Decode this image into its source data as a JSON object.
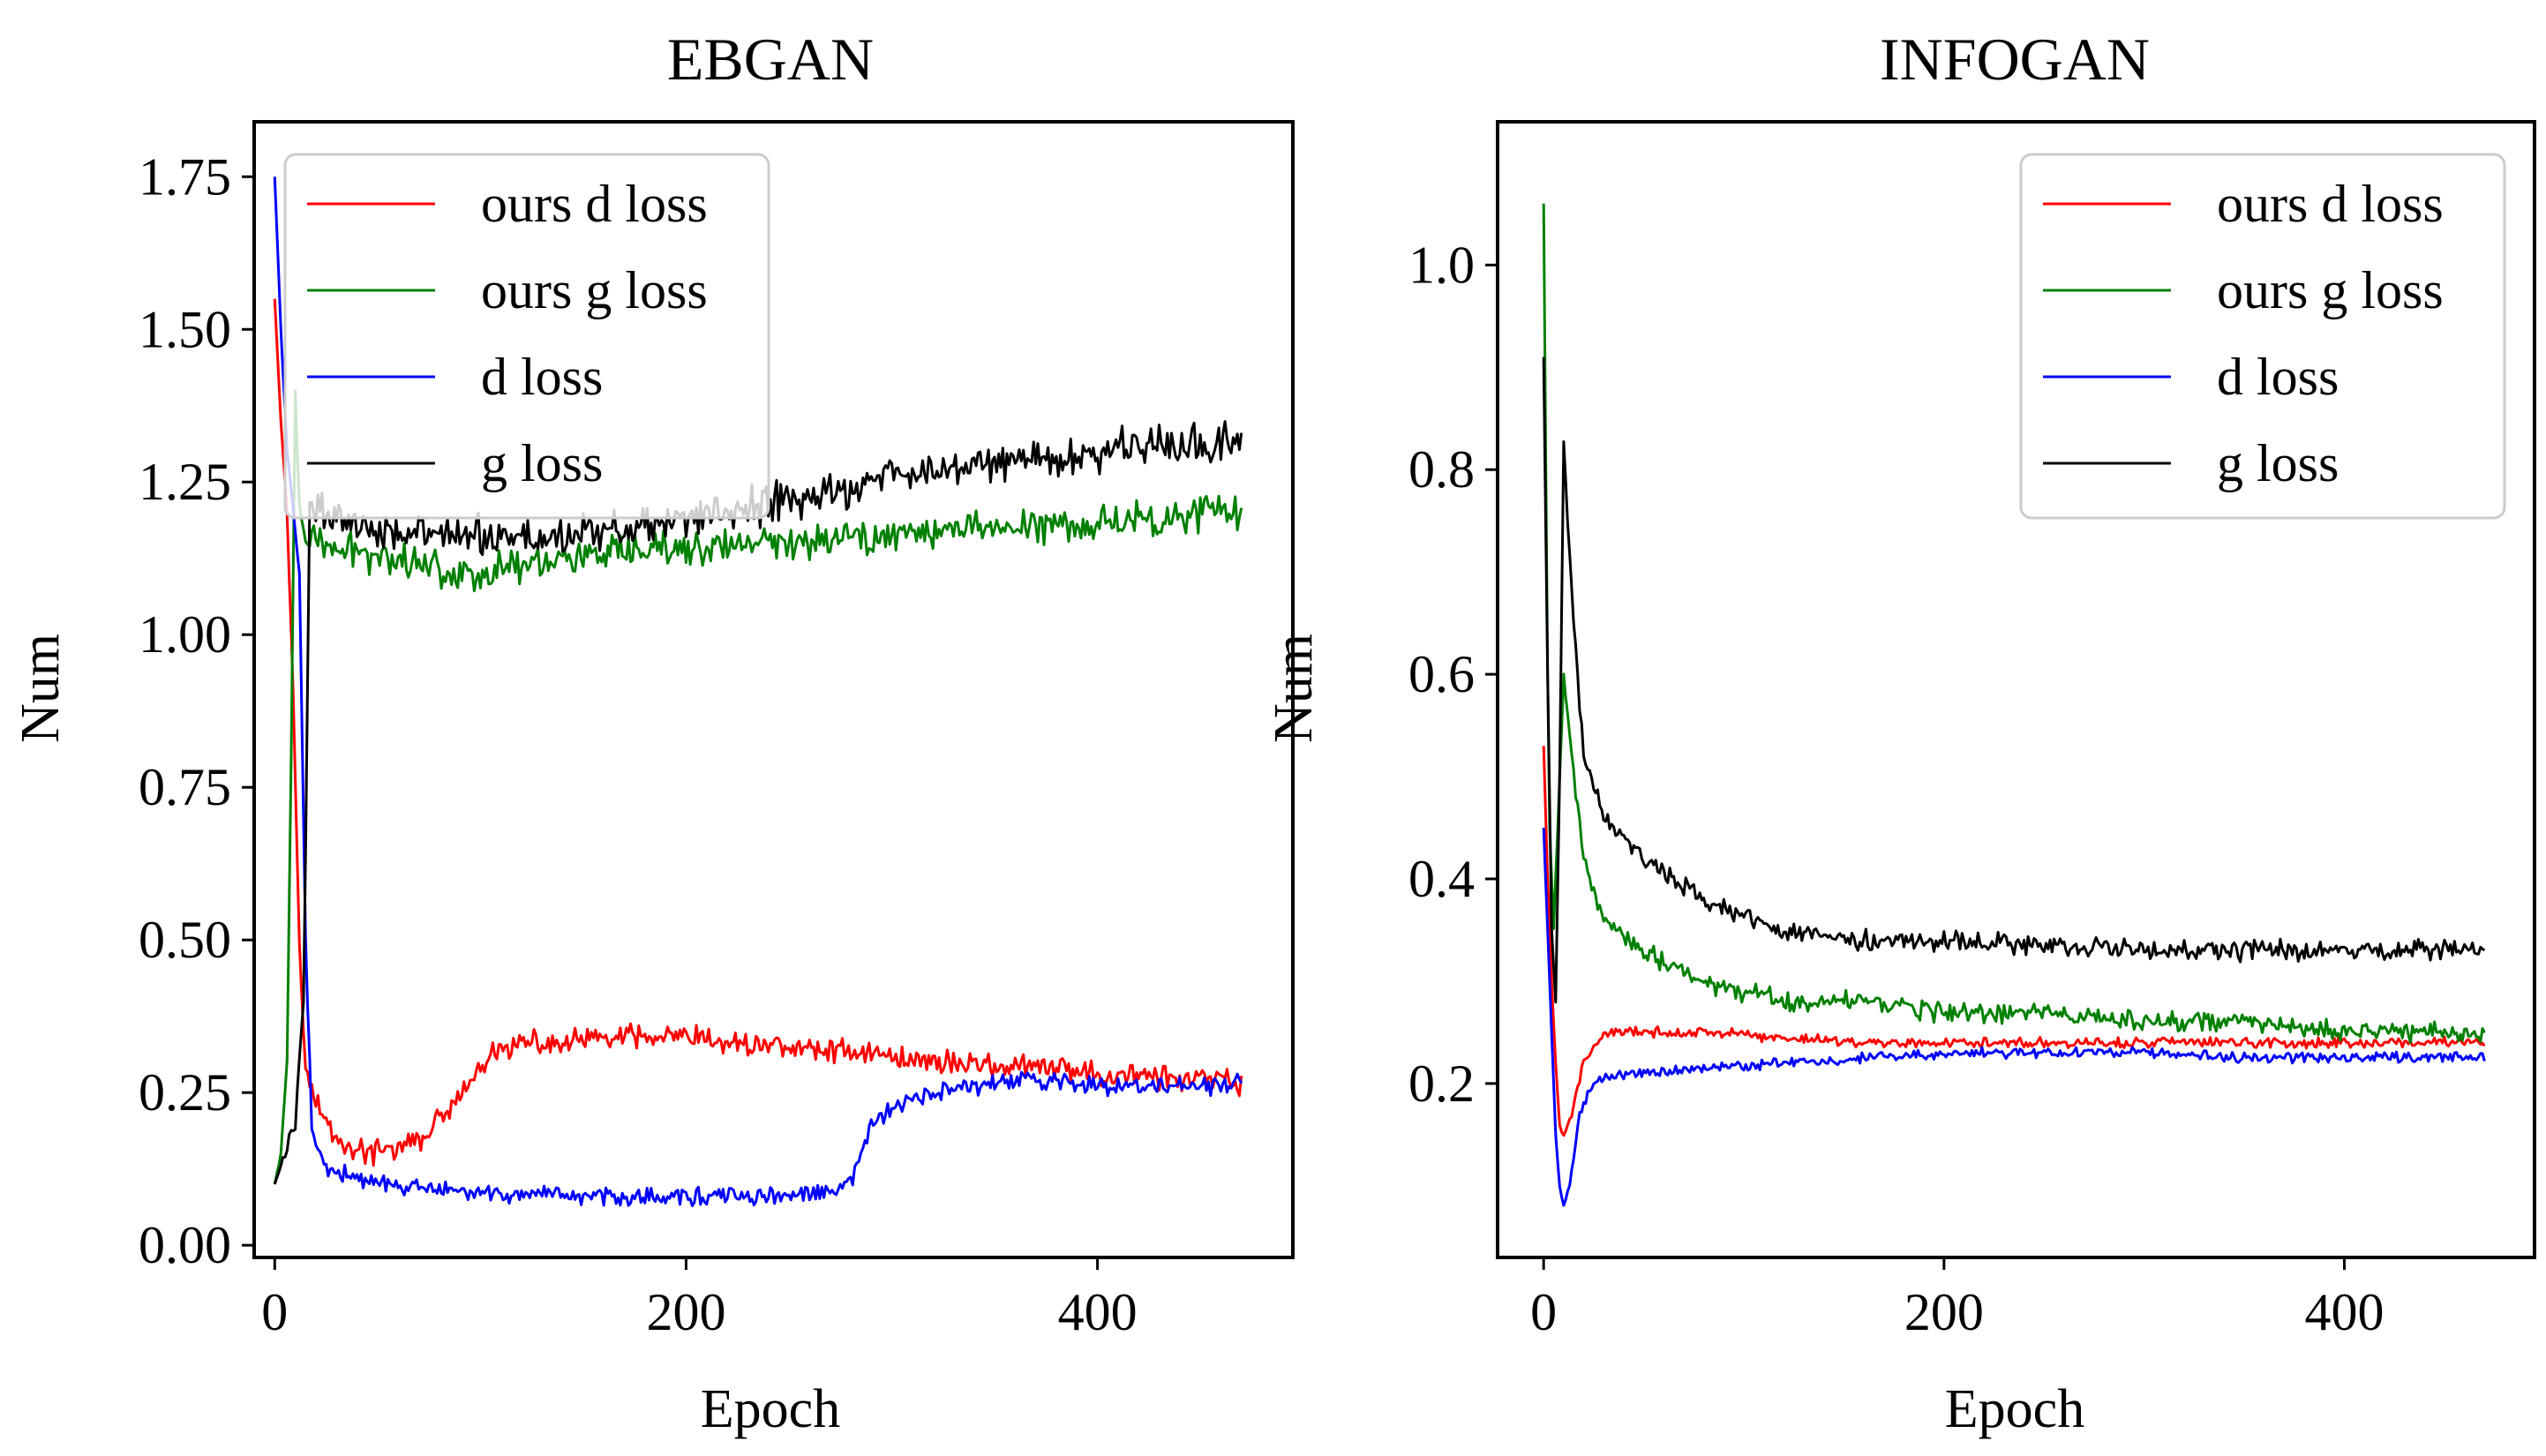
{
  "figure": {
    "background": "#ffffff"
  },
  "chart_data": [
    {
      "type": "line",
      "title": "EBGAN",
      "xlabel": "Epoch",
      "ylabel": "Num",
      "xlim": [
        -10,
        495
      ],
      "ylim": [
        -0.02,
        1.84
      ],
      "xticks": [
        0,
        200,
        400
      ],
      "xtick_labels": [
        "0",
        "200",
        "400"
      ],
      "yticks": [
        0.0,
        0.25,
        0.5,
        0.75,
        1.0,
        1.25,
        1.5,
        1.75
      ],
      "ytick_labels": [
        "0.00",
        "0.25",
        "0.50",
        "0.75",
        "1.00",
        "1.25",
        "1.50",
        "1.75"
      ],
      "legend_location": "upper-left",
      "series": [
        {
          "name": "ours d loss",
          "color": "#ff0000",
          "x": [
            0,
            3,
            6,
            9,
            12,
            15,
            18,
            25,
            35,
            50,
            70,
            90,
            100,
            110,
            120,
            140,
            160,
            180,
            200,
            220,
            240,
            260,
            280,
            300,
            320,
            340,
            360,
            380,
            400,
            420,
            440,
            460,
            470
          ],
          "y": [
            1.55,
            1.35,
            1.2,
            0.9,
            0.5,
            0.3,
            0.25,
            0.2,
            0.16,
            0.15,
            0.17,
            0.24,
            0.29,
            0.32,
            0.33,
            0.33,
            0.34,
            0.34,
            0.34,
            0.33,
            0.33,
            0.32,
            0.32,
            0.31,
            0.3,
            0.3,
            0.29,
            0.29,
            0.28,
            0.28,
            0.27,
            0.27,
            0.26
          ],
          "noise": 0.025
        },
        {
          "name": "ours g loss",
          "color": "#008000",
          "x": [
            0,
            3,
            6,
            8,
            10,
            12,
            15,
            20,
            30,
            50,
            70,
            90,
            100,
            110,
            130,
            150,
            170,
            190,
            210,
            230,
            250,
            270,
            290,
            310,
            330,
            350,
            370,
            390,
            410,
            430,
            450,
            470
          ],
          "y": [
            0.1,
            0.15,
            0.3,
            0.8,
            1.4,
            1.2,
            1.16,
            1.15,
            1.14,
            1.13,
            1.12,
            1.1,
            1.1,
            1.11,
            1.12,
            1.13,
            1.13,
            1.14,
            1.14,
            1.15,
            1.15,
            1.16,
            1.16,
            1.17,
            1.17,
            1.18,
            1.18,
            1.18,
            1.19,
            1.19,
            1.2,
            1.2
          ],
          "noise": 0.035
        },
        {
          "name": "d loss",
          "color": "#0000ff",
          "x": [
            0,
            3,
            6,
            9,
            12,
            15,
            18,
            22,
            30,
            50,
            80,
            100,
            130,
            160,
            200,
            240,
            270,
            280,
            290,
            300,
            320,
            340,
            360,
            380,
            400,
            420,
            440,
            460,
            470
          ],
          "y": [
            1.75,
            1.5,
            1.3,
            1.2,
            1.1,
            0.5,
            0.2,
            0.14,
            0.12,
            0.1,
            0.09,
            0.085,
            0.08,
            0.08,
            0.08,
            0.08,
            0.085,
            0.1,
            0.2,
            0.22,
            0.25,
            0.26,
            0.27,
            0.27,
            0.26,
            0.26,
            0.26,
            0.26,
            0.27
          ],
          "noise": 0.018
        },
        {
          "name": "g loss",
          "color": "#000000",
          "x": [
            0,
            5,
            10,
            14,
            17,
            20,
            25,
            40,
            60,
            80,
            100,
            130,
            160,
            190,
            220,
            250,
            280,
            300,
            320,
            340,
            360,
            380,
            400,
            420,
            440,
            460,
            470
          ],
          "y": [
            0.1,
            0.15,
            0.2,
            0.4,
            1.2,
            1.22,
            1.2,
            1.18,
            1.17,
            1.16,
            1.16,
            1.16,
            1.17,
            1.18,
            1.2,
            1.22,
            1.24,
            1.26,
            1.27,
            1.28,
            1.29,
            1.29,
            1.3,
            1.31,
            1.31,
            1.32,
            1.32
          ],
          "noise": 0.04
        }
      ]
    },
    {
      "type": "line",
      "title": "INFOGAN",
      "xlabel": "Epoch",
      "ylabel": "Num",
      "xlim": [
        -23,
        495
      ],
      "ylim": [
        0.03,
        1.14
      ],
      "xticks": [
        0,
        200,
        400
      ],
      "xtick_labels": [
        "0",
        "200",
        "400"
      ],
      "yticks": [
        0.2,
        0.4,
        0.6,
        0.8,
        1.0
      ],
      "ytick_labels": [
        "0.2",
        "0.4",
        "0.6",
        "0.8",
        "1.0"
      ],
      "legend_location": "upper-right",
      "series": [
        {
          "name": "ours d loss",
          "color": "#ff0000",
          "x": [
            0,
            2,
            4,
            6,
            8,
            10,
            14,
            20,
            30,
            50,
            80,
            120,
            160,
            200,
            250,
            300,
            350,
            400,
            450,
            470
          ],
          "y": [
            0.53,
            0.4,
            0.3,
            0.22,
            0.16,
            0.15,
            0.17,
            0.22,
            0.25,
            0.25,
            0.25,
            0.245,
            0.24,
            0.24,
            0.24,
            0.24,
            0.24,
            0.24,
            0.24,
            0.24
          ],
          "noise": 0.006
        },
        {
          "name": "ours g loss",
          "color": "#008000",
          "x": [
            0,
            2,
            3,
            5,
            7,
            10,
            14,
            20,
            30,
            50,
            80,
            120,
            160,
            200,
            250,
            300,
            350,
            400,
            450,
            470
          ],
          "y": [
            1.06,
            0.6,
            0.45,
            0.35,
            0.45,
            0.6,
            0.52,
            0.42,
            0.36,
            0.33,
            0.3,
            0.28,
            0.28,
            0.27,
            0.27,
            0.26,
            0.26,
            0.25,
            0.25,
            0.25
          ],
          "noise": 0.012
        },
        {
          "name": "d loss",
          "color": "#0000ff",
          "x": [
            0,
            2,
            4,
            6,
            8,
            10,
            13,
            18,
            25,
            35,
            50,
            80,
            120,
            160,
            200,
            250,
            300,
            350,
            400,
            450,
            470
          ],
          "y": [
            0.45,
            0.35,
            0.25,
            0.15,
            0.1,
            0.08,
            0.1,
            0.17,
            0.2,
            0.21,
            0.21,
            0.215,
            0.22,
            0.225,
            0.23,
            0.23,
            0.23,
            0.225,
            0.225,
            0.225,
            0.225
          ],
          "noise": 0.006
        },
        {
          "name": "g loss",
          "color": "#000000",
          "x": [
            0,
            2,
            4,
            6,
            8,
            10,
            12,
            15,
            20,
            30,
            50,
            80,
            120,
            160,
            200,
            250,
            300,
            350,
            400,
            450,
            470
          ],
          "y": [
            0.91,
            0.6,
            0.35,
            0.28,
            0.5,
            0.83,
            0.75,
            0.65,
            0.52,
            0.46,
            0.42,
            0.38,
            0.35,
            0.34,
            0.34,
            0.335,
            0.33,
            0.33,
            0.33,
            0.33,
            0.33
          ],
          "noise": 0.012
        }
      ]
    }
  ]
}
